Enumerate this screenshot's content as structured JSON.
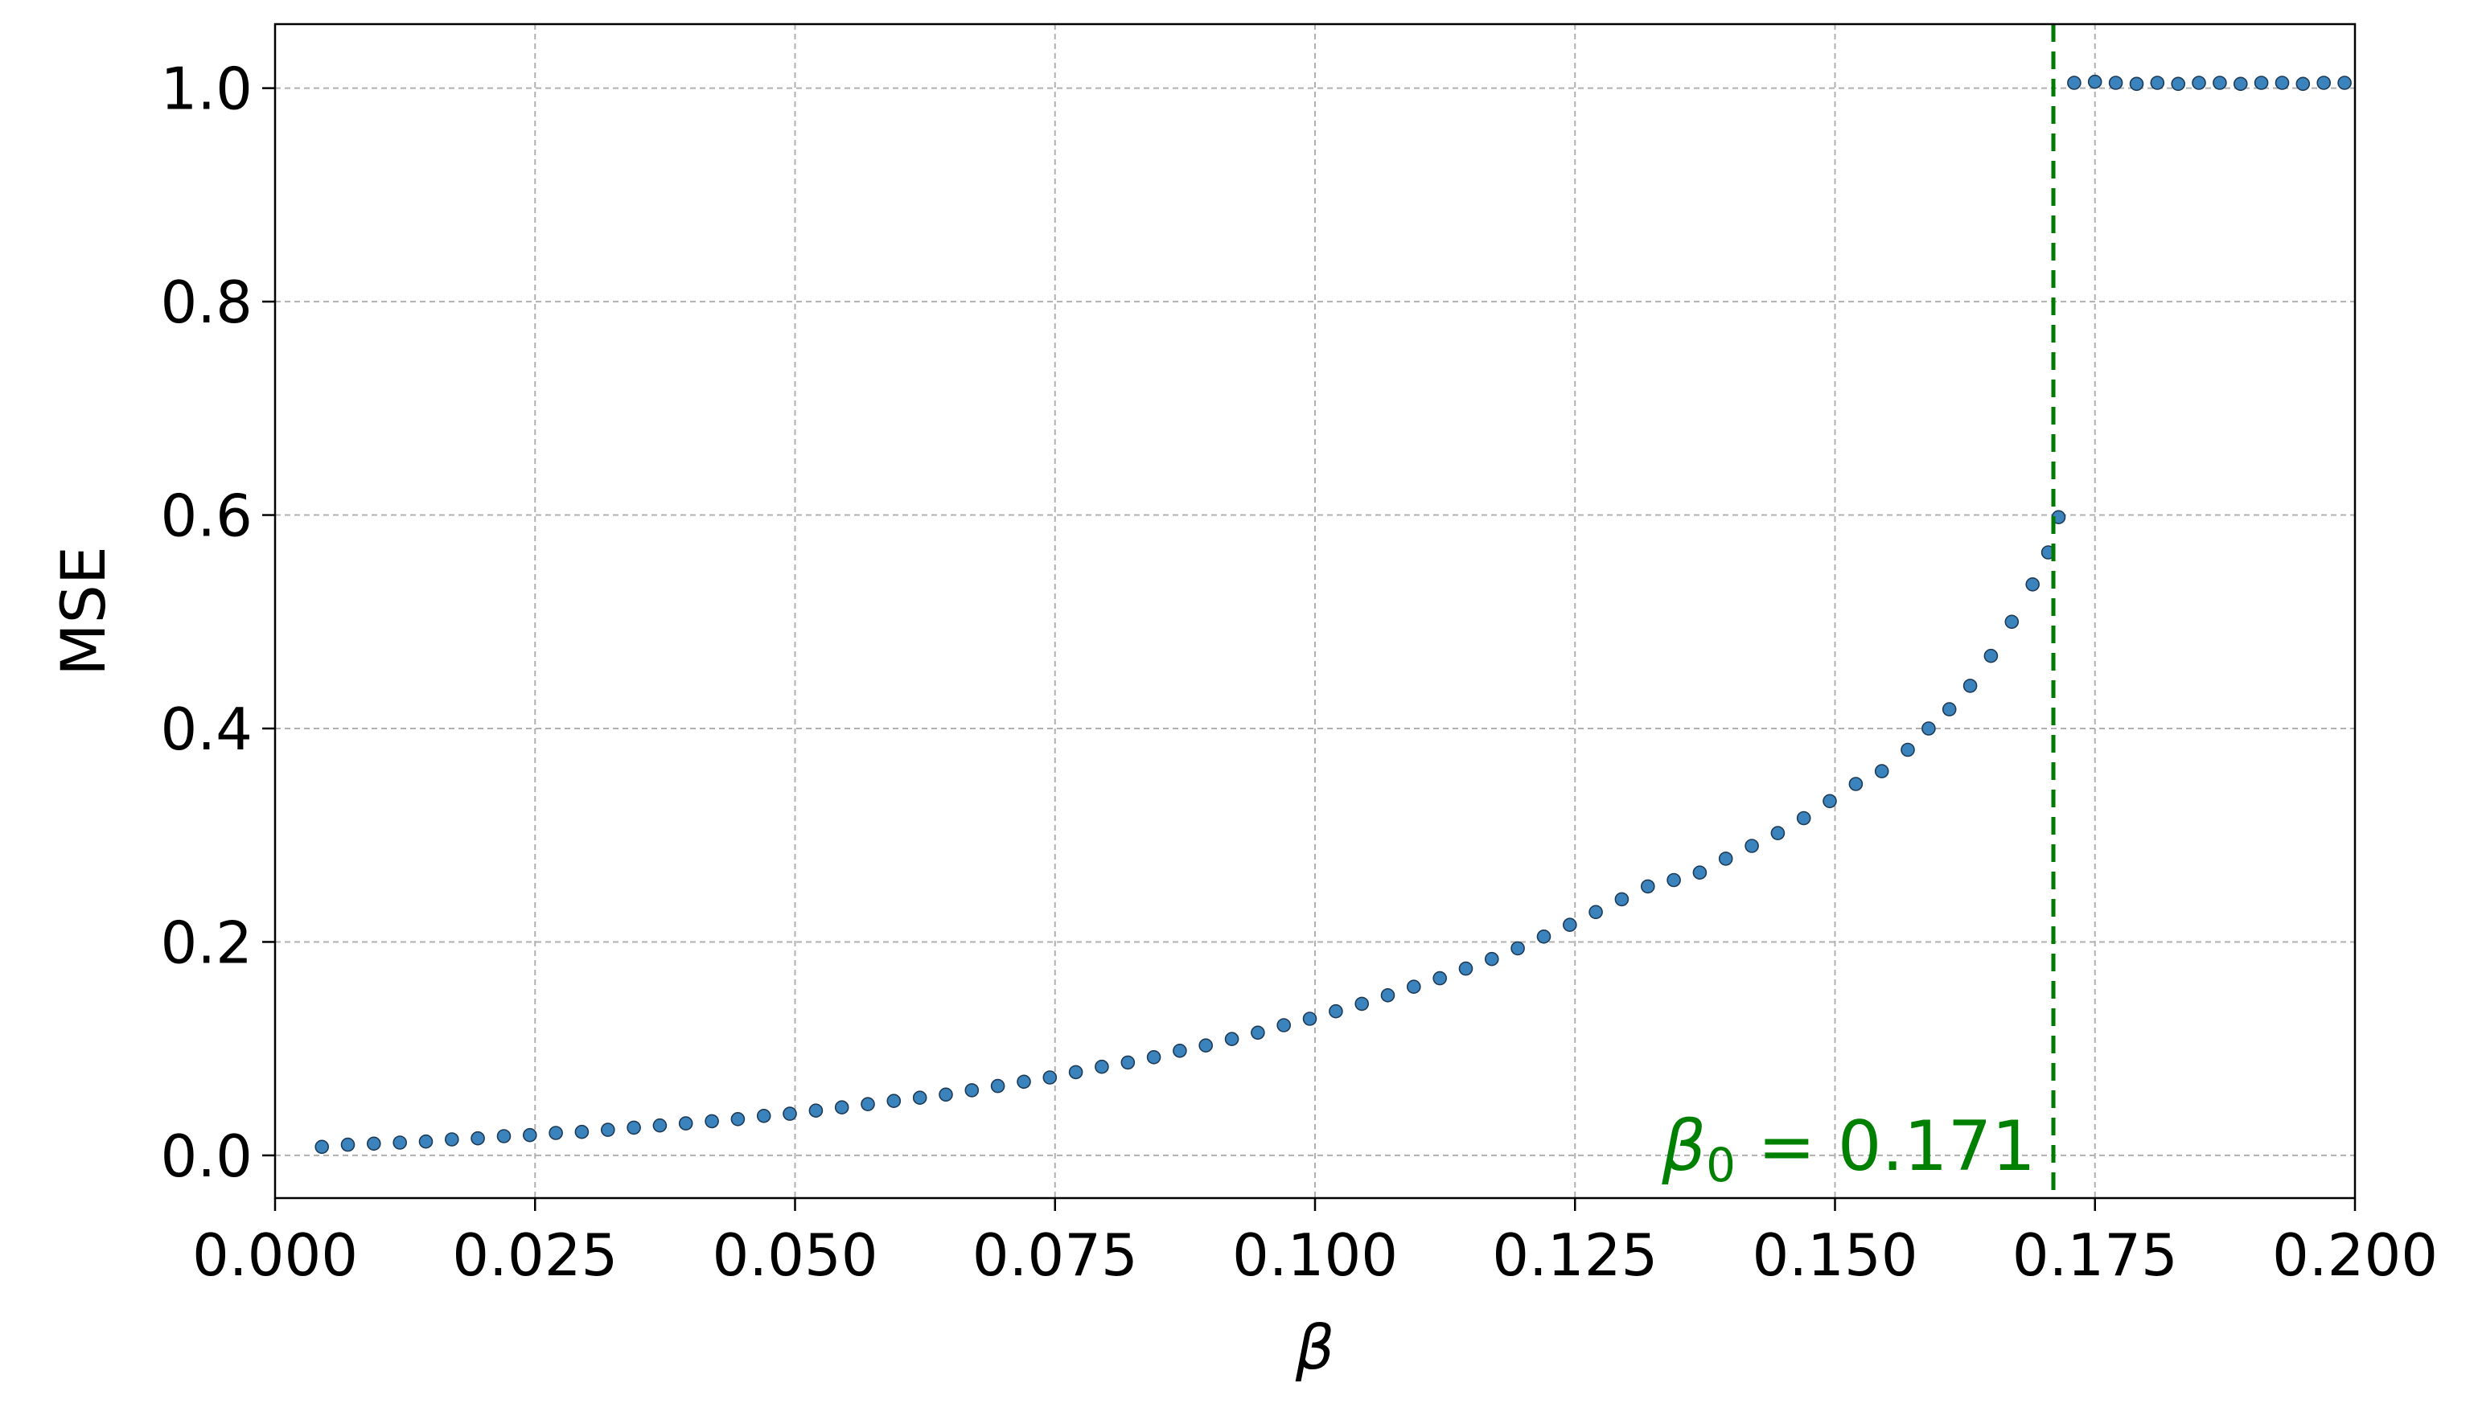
{
  "chart_data": {
    "type": "scatter",
    "xlabel": "β",
    "ylabel": "MSE",
    "xlim": [
      0.0,
      0.2
    ],
    "ylim": [
      -0.04,
      1.06
    ],
    "grid": true,
    "x_ticks": [
      "0.000",
      "0.025",
      "0.050",
      "0.075",
      "0.100",
      "0.125",
      "0.150",
      "0.175",
      "0.200"
    ],
    "y_ticks": [
      "0.0",
      "0.2",
      "0.4",
      "0.6",
      "0.8",
      "1.0"
    ],
    "colors": {
      "point_fill": "#3b83bd",
      "point_edge": "#1d3b57",
      "threshold": "#007a00",
      "annotation": "#008000",
      "grid": "#b0b0b0"
    },
    "threshold": {
      "x": 0.171,
      "label_symbol": "β",
      "label_subscript": "0",
      "label_value": " = 0.171"
    },
    "series": [
      {
        "x": [
          0.0045,
          0.007,
          0.0095,
          0.012,
          0.0145,
          0.017,
          0.0195,
          0.022,
          0.0245,
          0.027,
          0.0295,
          0.032,
          0.0345,
          0.037,
          0.0395,
          0.042,
          0.0445,
          0.047,
          0.0495,
          0.052,
          0.0545,
          0.057,
          0.0595,
          0.062,
          0.0645,
          0.067,
          0.0695,
          0.072,
          0.0745,
          0.077,
          0.0795,
          0.082,
          0.0845,
          0.087,
          0.0895,
          0.092,
          0.0945,
          0.097,
          0.0995,
          0.102,
          0.1045,
          0.107,
          0.1095,
          0.112,
          0.1145,
          0.117,
          0.1195,
          0.122,
          0.1245,
          0.127,
          0.1295,
          0.132,
          0.1345,
          0.137,
          0.1395,
          0.142,
          0.1445,
          0.147,
          0.1495,
          0.152,
          0.1545,
          0.157,
          0.159,
          0.161,
          0.163,
          0.165,
          0.167,
          0.169,
          0.1705,
          0.1715,
          0.173,
          0.175,
          0.177,
          0.179,
          0.181,
          0.183,
          0.185,
          0.187,
          0.189,
          0.191,
          0.193,
          0.195,
          0.197,
          0.199
        ],
        "y": [
          0.008,
          0.01,
          0.011,
          0.012,
          0.013,
          0.015,
          0.016,
          0.018,
          0.019,
          0.021,
          0.022,
          0.024,
          0.026,
          0.028,
          0.03,
          0.032,
          0.034,
          0.037,
          0.039,
          0.042,
          0.045,
          0.048,
          0.051,
          0.054,
          0.057,
          0.061,
          0.065,
          0.069,
          0.073,
          0.078,
          0.083,
          0.087,
          0.092,
          0.098,
          0.103,
          0.109,
          0.115,
          0.122,
          0.128,
          0.135,
          0.142,
          0.15,
          0.158,
          0.166,
          0.175,
          0.184,
          0.194,
          0.205,
          0.216,
          0.228,
          0.24,
          0.252,
          0.258,
          0.265,
          0.278,
          0.29,
          0.302,
          0.316,
          0.332,
          0.348,
          0.36,
          0.38,
          0.4,
          0.418,
          0.44,
          0.468,
          0.5,
          0.535,
          0.565,
          0.598,
          1.005,
          1.006,
          1.005,
          1.004,
          1.005,
          1.004,
          1.005,
          1.005,
          1.004,
          1.005,
          1.005,
          1.004,
          1.005,
          1.005
        ]
      }
    ]
  }
}
